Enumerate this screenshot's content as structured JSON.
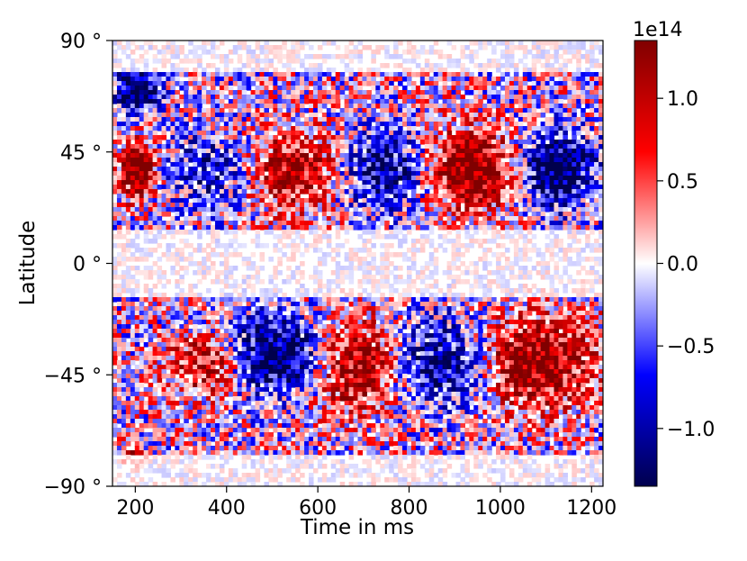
{
  "chart_data": {
    "type": "heatmap",
    "title": "",
    "xlabel": "Time in ms",
    "ylabel": "Latitude",
    "xlim": [
      150,
      1225
    ],
    "ylim": [
      -90,
      90
    ],
    "x_ticks": [
      200,
      400,
      600,
      800,
      1000,
      1200
    ],
    "y_ticks": [
      90,
      45,
      0,
      -45,
      -90
    ],
    "y_tick_labels": [
      "90 °",
      "45 °",
      "0 °",
      "−45 °",
      "−90 °"
    ],
    "colormap": "seismic",
    "colors": {
      "low": "#00004d",
      "mid_low": "#0000ff",
      "zero": "#ffffff",
      "mid_high": "#ff0000",
      "high": "#800000"
    },
    "colorbar": {
      "offset_text": "1e14",
      "range": [
        -1.35,
        1.35
      ],
      "ticks": [
        1.0,
        0.5,
        0.0,
        -0.5,
        -1.0
      ],
      "tick_labels": [
        "1.0",
        "0.5",
        "0.0",
        "−0.5",
        "−1.0"
      ]
    },
    "features": [
      {
        "sign": "negative",
        "t": [
          150,
          260
        ],
        "lat": [
          60,
          80
        ]
      },
      {
        "sign": "positive",
        "t": [
          160,
          250
        ],
        "lat": [
          25,
          50
        ]
      },
      {
        "sign": "negative",
        "t": [
          250,
          540
        ],
        "lat": [
          20,
          55
        ]
      },
      {
        "sign": "positive",
        "t": [
          300,
          720
        ],
        "lat": [
          20,
          55
        ]
      },
      {
        "sign": "negative",
        "t": [
          600,
          900
        ],
        "lat": [
          20,
          55
        ]
      },
      {
        "sign": "positive",
        "t": [
          760,
          1100
        ],
        "lat": [
          20,
          55
        ]
      },
      {
        "sign": "negative",
        "t": [
          1000,
          1225
        ],
        "lat": [
          20,
          55
        ]
      },
      {
        "sign": "positive",
        "t": [
          250,
          480
        ],
        "lat": [
          -55,
          -25
        ]
      },
      {
        "sign": "negative",
        "t": [
          300,
          700
        ],
        "lat": [
          -55,
          -20
        ]
      },
      {
        "sign": "positive",
        "t": [
          550,
          800
        ],
        "lat": [
          -60,
          -20
        ]
      },
      {
        "sign": "negative",
        "t": [
          750,
          1050
        ],
        "lat": [
          -60,
          -20
        ]
      },
      {
        "sign": "positive",
        "t": [
          850,
          1225
        ],
        "lat": [
          -60,
          -20
        ]
      },
      {
        "sign": "positive",
        "t": [
          150,
          230
        ],
        "lat": [
          -85,
          -75
        ]
      }
    ]
  }
}
